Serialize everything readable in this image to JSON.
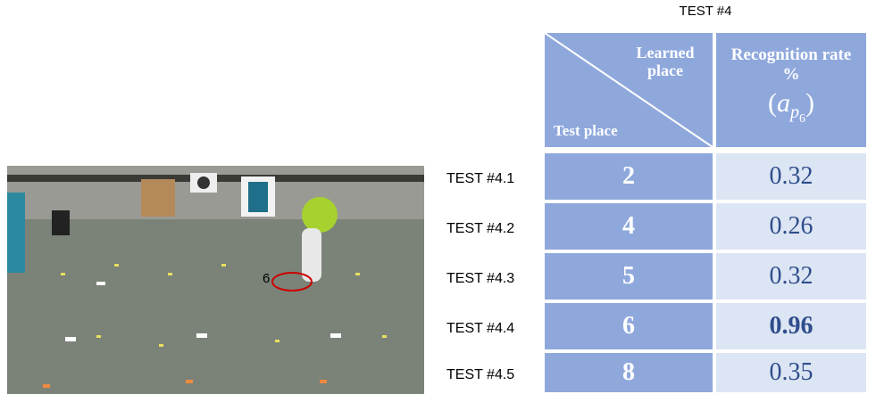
{
  "figure": {
    "photo": {
      "marker_label": "6"
    },
    "table": {
      "title": "TEST #4",
      "header": {
        "learned_place": "Learned place",
        "test_place": "Test place",
        "rate": "Recognition rate %",
        "formula": {
          "open": "(",
          "base": "a",
          "sub": "p",
          "subsub": "6",
          "close": ")"
        }
      },
      "rows": [
        [
          "TEST #4.1",
          "2",
          "0.32"
        ],
        [
          "TEST #4.2",
          "4",
          "0.26"
        ],
        [
          "TEST #4.3",
          "5",
          "0.32"
        ],
        [
          "TEST #4.4",
          "6",
          "0.96"
        ],
        [
          "TEST #4.5",
          "8",
          "0.35"
        ]
      ]
    }
  }
}
